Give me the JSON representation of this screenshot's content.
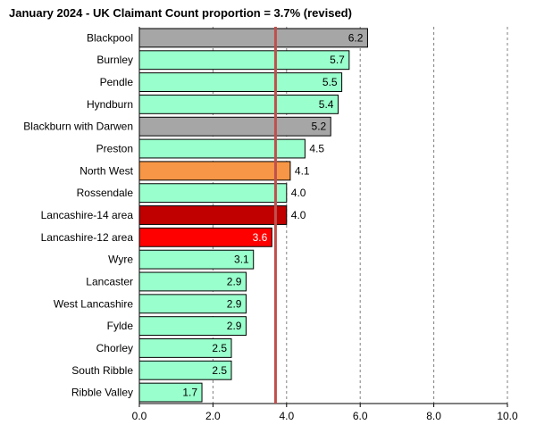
{
  "chart_data": {
    "type": "bar",
    "orientation": "horizontal",
    "title": "January 2024 - UK Claimant Count proportion = 3.7% (revised)",
    "categories": [
      "Blackpool",
      "Burnley",
      "Pendle",
      "Hyndburn",
      "Blackburn with Darwen",
      "Preston",
      "North West",
      "Rossendale",
      "Lancashire-14 area",
      "Lancashire-12 area",
      "Wyre",
      "Lancaster",
      "West Lancashire",
      "Fylde",
      "Chorley",
      "South Ribble",
      "Ribble Valley"
    ],
    "values": [
      6.2,
      5.7,
      5.5,
      5.4,
      5.2,
      4.5,
      4.1,
      4.0,
      4.0,
      3.6,
      3.1,
      2.9,
      2.9,
      2.9,
      2.5,
      2.5,
      1.7
    ],
    "value_labels": [
      "6.2",
      "5.7",
      "5.5",
      "5.4",
      "5.2",
      "4.5",
      "4.1",
      "4.0",
      "4.0",
      "3.6",
      "3.1",
      "2.9",
      "2.9",
      "2.9",
      "2.5",
      "2.5",
      "1.7"
    ],
    "bar_colors": [
      "#a6a6a6",
      "#99ffcc",
      "#99ffcc",
      "#99ffcc",
      "#a6a6a6",
      "#99ffcc",
      "#f79646",
      "#99ffcc",
      "#c00000",
      "#ff0000",
      "#99ffcc",
      "#99ffcc",
      "#99ffcc",
      "#99ffcc",
      "#99ffcc",
      "#99ffcc",
      "#99ffcc"
    ],
    "label_colors": [
      "#000000",
      "#000000",
      "#000000",
      "#000000",
      "#000000",
      "#000000",
      "#000000",
      "#000000",
      "#000000",
      "#ffffff",
      "#000000",
      "#000000",
      "#000000",
      "#000000",
      "#000000",
      "#000000",
      "#000000"
    ],
    "label_position": [
      "inside",
      "inside",
      "inside",
      "inside",
      "inside",
      "outside",
      "outside",
      "outside",
      "outside",
      "inside",
      "inside",
      "inside",
      "inside",
      "inside",
      "inside",
      "inside",
      "inside"
    ],
    "xlim": [
      0,
      10
    ],
    "xticks": [
      0,
      2,
      4,
      6,
      8,
      10
    ],
    "xtick_labels": [
      "0.0",
      "2.0",
      "4.0",
      "6.0",
      "8.0",
      "10.0"
    ],
    "reference_line": {
      "value": 3.7,
      "color": "#c0504d"
    },
    "gridlines": {
      "x": true,
      "style": "dashed",
      "color": "#808080"
    },
    "xlabel": "",
    "ylabel": ""
  }
}
